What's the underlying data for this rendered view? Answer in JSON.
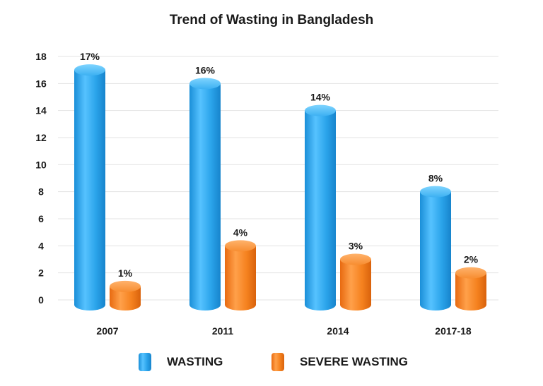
{
  "chart_data": {
    "type": "bar",
    "title": "Trend of Wasting in Bangladesh",
    "categories": [
      "2007",
      "2011",
      "2014",
      "2017-18"
    ],
    "series": [
      {
        "name": "WASTING",
        "values": [
          17,
          16,
          14,
          8
        ],
        "labels": [
          "17%",
          "16%",
          "14%",
          "8%"
        ]
      },
      {
        "name": "SEVERE WASTING",
        "values": [
          1,
          4,
          3,
          2
        ],
        "labels": [
          "1%",
          "4%",
          "3%",
          "2%"
        ]
      }
    ],
    "ylim": [
      0,
      18
    ],
    "yticks": [
      "0",
      "2",
      "4",
      "6",
      "8",
      "10",
      "12",
      "14",
      "16",
      "18"
    ],
    "grid": true,
    "legend_position": "bottom",
    "colors": {
      "wasting": "#2aa3ea",
      "severe_wasting": "#f5821f"
    }
  }
}
